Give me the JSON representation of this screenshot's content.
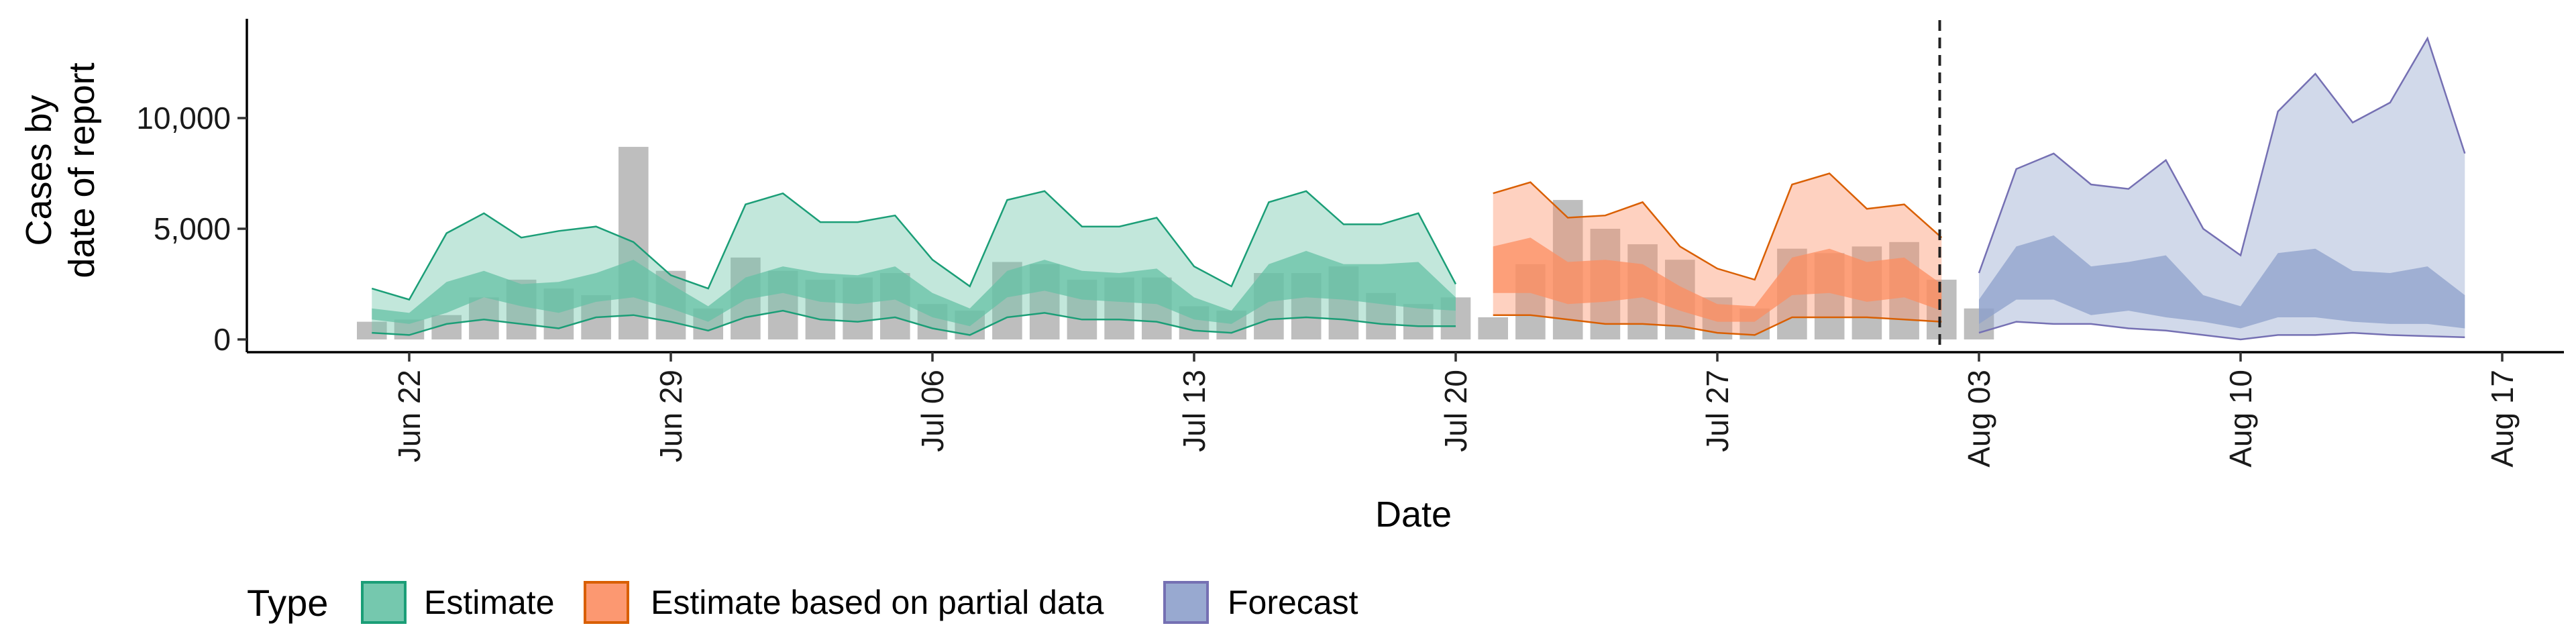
{
  "chart_data": {
    "type": "area",
    "xlabel": "Date",
    "ylabel_lines": [
      "Cases by",
      "date of report"
    ],
    "x_start_date": "2020-06-20",
    "x_ticks": [
      {
        "day": 2,
        "label": "Jun 22"
      },
      {
        "day": 9,
        "label": "Jun 29"
      },
      {
        "day": 16,
        "label": "Jul 06"
      },
      {
        "day": 23,
        "label": "Jul 13"
      },
      {
        "day": 30,
        "label": "Jul 20"
      },
      {
        "day": 37,
        "label": "Jul 27"
      },
      {
        "day": 44,
        "label": "Aug 03"
      },
      {
        "day": 51,
        "label": "Aug 10"
      },
      {
        "day": 58,
        "label": "Aug 17"
      }
    ],
    "y_ticks": [
      {
        "value": 0,
        "label": "0"
      },
      {
        "value": 5000,
        "label": "5,000"
      },
      {
        "value": 10000,
        "label": "10,000"
      }
    ],
    "ylim": [
      0,
      14200
    ],
    "xlim_days": [
      0.6,
      58.8
    ],
    "forecast_start_day": 43,
    "bars": {
      "start_day": 1,
      "values": [
        800,
        900,
        1100,
        1900,
        2700,
        2300,
        2000,
        8700,
        3100,
        1400,
        3700,
        3100,
        2700,
        2800,
        3000,
        1600,
        1300,
        3500,
        3400,
        2700,
        2800,
        2800,
        1500,
        1300,
        3000,
        3000,
        3300,
        2100,
        1600,
        1900,
        1000,
        3400,
        6300,
        5000,
        4300,
        3600,
        1900,
        1400,
        4100,
        3900,
        4200,
        4400,
        2700,
        1400
      ],
      "color": "#b3b3b3"
    },
    "series": [
      {
        "name": "Estimate",
        "color_fill": "#66c2a5",
        "color_line": "#1b9e77",
        "start_day": 1,
        "lower90": [
          300,
          200,
          700,
          900,
          700,
          500,
          1000,
          1100,
          800,
          400,
          1000,
          1300,
          900,
          800,
          1000,
          500,
          200,
          1000,
          1200,
          900,
          900,
          800,
          400,
          300,
          900,
          1000,
          900,
          700,
          600,
          600
        ],
        "lower50": [
          900,
          700,
          1200,
          1900,
          1500,
          1200,
          1700,
          1900,
          1400,
          800,
          1800,
          2100,
          1700,
          1600,
          1800,
          1000,
          600,
          1900,
          2200,
          1800,
          1700,
          1600,
          900,
          700,
          1700,
          1900,
          1800,
          1600,
          1400,
          1300
        ],
        "upper50": [
          1400,
          1200,
          2600,
          3100,
          2500,
          2600,
          3000,
          3600,
          2500,
          1500,
          2800,
          3300,
          3000,
          2900,
          3300,
          2100,
          1400,
          3100,
          3600,
          3100,
          3000,
          3200,
          1900,
          1300,
          3400,
          4000,
          3400,
          3400,
          3500,
          1900
        ],
        "upper90": [
          2300,
          1800,
          4800,
          5700,
          4600,
          4900,
          5100,
          4400,
          2900,
          2300,
          6100,
          6600,
          5300,
          5300,
          5600,
          3600,
          2400,
          6300,
          6700,
          5100,
          5100,
          5500,
          3300,
          2400,
          6200,
          6700,
          5200,
          5200,
          5700,
          2500
        ]
      },
      {
        "name": "Estimate based on partial data",
        "color_fill": "#fc8d62",
        "color_line": "#d95f02",
        "start_day": 31,
        "lower90": [
          1100,
          1100,
          900,
          700,
          700,
          600,
          300,
          200,
          1000,
          1000,
          1000,
          900,
          800
        ],
        "lower50": [
          2100,
          2100,
          1600,
          1700,
          1900,
          1300,
          800,
          800,
          2000,
          2100,
          1700,
          1900,
          1300
        ],
        "upper50": [
          4200,
          4600,
          3500,
          3600,
          3400,
          2400,
          1600,
          1500,
          3700,
          4100,
          3500,
          3700,
          2500
        ],
        "upper90": [
          6600,
          7100,
          5500,
          5600,
          6200,
          4200,
          3200,
          2700,
          7000,
          7500,
          5900,
          6100,
          4600
        ]
      },
      {
        "name": "Forecast",
        "color_fill": "#8da0cb",
        "color_line": "#7570b3",
        "start_day": 44,
        "lower90": [
          300,
          800,
          700,
          700,
          500,
          400,
          200,
          0,
          200,
          200,
          300,
          200,
          150,
          100
        ],
        "lower50": [
          700,
          1800,
          1800,
          1100,
          1300,
          1000,
          800,
          500,
          1000,
          1000,
          800,
          700,
          700,
          500
        ],
        "upper50": [
          1800,
          4200,
          4700,
          3300,
          3500,
          3800,
          2000,
          1500,
          3900,
          4100,
          3100,
          3000,
          3300,
          2000
        ],
        "upper90": [
          3000,
          7700,
          8400,
          7000,
          6800,
          8100,
          5000,
          3800,
          10300,
          12000,
          9800,
          10700,
          13600,
          8400
        ]
      }
    ],
    "legend": {
      "title": "Type",
      "position": "bottom-left",
      "items": [
        "Estimate",
        "Estimate based on partial data",
        "Forecast"
      ]
    }
  }
}
